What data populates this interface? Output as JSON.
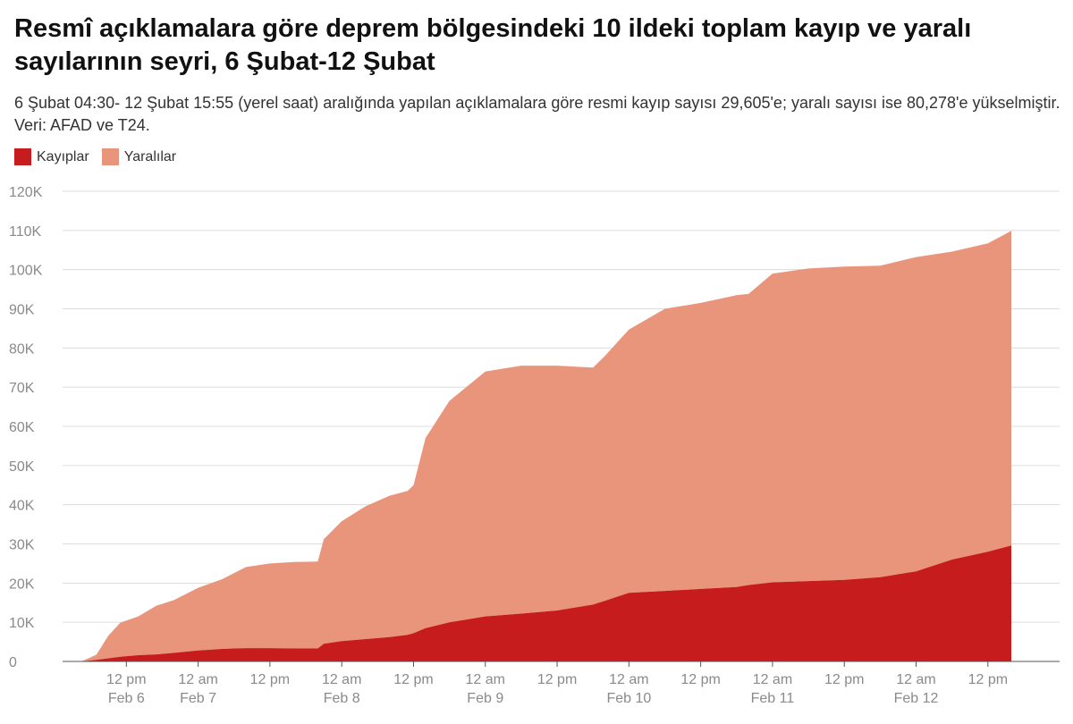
{
  "title": "Resmî açıklamalara göre deprem bölgesindeki 10 ildeki toplam kayıp ve yaralı sayılarının seyri, 6 Şubat-12 Şubat",
  "subtitle": "6 Şubat 04:30- 12 Şubat 15:55 (yerel saat) aralığında yapılan açıklamalara göre resmi kayıp sayısı 29,605'e; yaralı sayısı ise 80,278'e yükselmiştir. Veri: AFAD ve T24.",
  "legend": [
    {
      "label": "Kayıplar",
      "color": "#c61c1d"
    },
    {
      "label": "Yaralılar",
      "color": "#e8957b"
    }
  ],
  "chart_data": {
    "type": "area",
    "stacked": true,
    "x_unit": "datetime (local time)",
    "x": [
      "2023-02-06 04:30",
      "2023-02-06 07:00",
      "2023-02-06 09:00",
      "2023-02-06 11:00",
      "2023-02-06 14:00",
      "2023-02-06 17:00",
      "2023-02-06 20:00",
      "2023-02-07 00:00",
      "2023-02-07 04:00",
      "2023-02-07 08:00",
      "2023-02-07 12:00",
      "2023-02-07 16:00",
      "2023-02-07 20:00",
      "2023-02-07 21:00",
      "2023-02-08 00:00",
      "2023-02-08 04:00",
      "2023-02-08 08:00",
      "2023-02-08 11:00",
      "2023-02-08 12:00",
      "2023-02-08 14:00",
      "2023-02-08 18:00",
      "2023-02-09 00:00",
      "2023-02-09 06:00",
      "2023-02-09 12:00",
      "2023-02-09 18:00",
      "2023-02-09 20:00",
      "2023-02-10 00:00",
      "2023-02-10 06:00",
      "2023-02-10 12:00",
      "2023-02-10 18:00",
      "2023-02-10 20:00",
      "2023-02-11 00:00",
      "2023-02-11 06:00",
      "2023-02-11 12:00",
      "2023-02-11 18:00",
      "2023-02-12 00:00",
      "2023-02-12 06:00",
      "2023-02-12 12:00",
      "2023-02-12 15:55"
    ],
    "series": [
      {
        "name": "Kayıplar",
        "color": "#c61c1d",
        "values": [
          0,
          400,
          800,
          1200,
          1600,
          1800,
          2200,
          2800,
          3200,
          3400,
          3400,
          3300,
          3300,
          4500,
          5200,
          5700,
          6200,
          6800,
          7200,
          8500,
          10000,
          11500,
          12200,
          13000,
          14500,
          15500,
          17500,
          18000,
          18500,
          19000,
          19500,
          20200,
          20500,
          20800,
          21500,
          23000,
          26000,
          28000,
          29605
        ]
      },
      {
        "name": "Yaralılar",
        "color": "#e8957b",
        "values": [
          0,
          1300,
          5800,
          8700,
          9900,
          12400,
          13500,
          16000,
          17800,
          20700,
          21600,
          22100,
          22200,
          26700,
          30600,
          33900,
          36100,
          36700,
          37800,
          48500,
          56500,
          62500,
          63300,
          62500,
          60500,
          62500,
          67200,
          72000,
          73000,
          74500,
          74300,
          78800,
          79800,
          80000,
          79500,
          80200,
          78600,
          78700,
          80278
        ]
      }
    ],
    "ylim": [
      0,
      120000
    ],
    "y_ticks": [
      "0",
      "10K",
      "20K",
      "30K",
      "40K",
      "50K",
      "60K",
      "70K",
      "80K",
      "90K",
      "100K",
      "110K",
      "120K"
    ],
    "x_ticks": [
      {
        "t": "2023-02-06 12:00",
        "line1": "12 pm",
        "line2": "Feb 6"
      },
      {
        "t": "2023-02-07 00:00",
        "line1": "12 am",
        "line2": "Feb 7"
      },
      {
        "t": "2023-02-07 12:00",
        "line1": "12 pm",
        "line2": ""
      },
      {
        "t": "2023-02-08 00:00",
        "line1": "12 am",
        "line2": "Feb 8"
      },
      {
        "t": "2023-02-08 12:00",
        "line1": "12 pm",
        "line2": ""
      },
      {
        "t": "2023-02-09 00:00",
        "line1": "12 am",
        "line2": "Feb 9"
      },
      {
        "t": "2023-02-09 12:00",
        "line1": "12 pm",
        "line2": ""
      },
      {
        "t": "2023-02-10 00:00",
        "line1": "12 am",
        "line2": "Feb 10"
      },
      {
        "t": "2023-02-10 12:00",
        "line1": "12 pm",
        "line2": ""
      },
      {
        "t": "2023-02-11 00:00",
        "line1": "12 am",
        "line2": "Feb 11"
      },
      {
        "t": "2023-02-11 12:00",
        "line1": "12 pm",
        "line2": ""
      },
      {
        "t": "2023-02-12 00:00",
        "line1": "12 am",
        "line2": "Feb 12"
      },
      {
        "t": "2023-02-12 12:00",
        "line1": "12 pm",
        "line2": ""
      }
    ],
    "grid": true,
    "legend_position": "top-left"
  }
}
